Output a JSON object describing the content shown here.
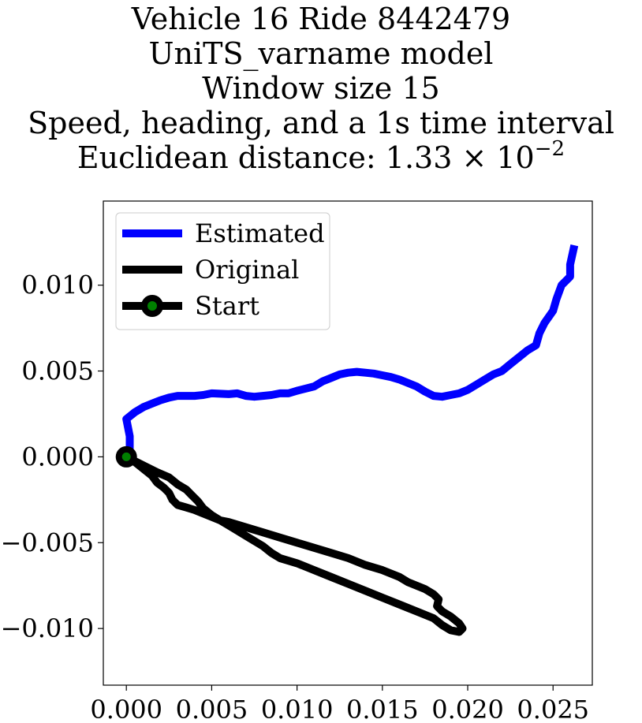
{
  "title": {
    "line1": "Vehicle 16 Ride 8442479",
    "line2": "UniTS_varname model",
    "line3": "Window size 15",
    "line4": "Speed, heading, and a 1s time interval",
    "line5_prefix": "Euclidean distance: 1.33 × 10",
    "line5_exponent": "−2"
  },
  "chart_data": {
    "type": "line",
    "xlim": [
      -0.00135,
      0.0273
    ],
    "ylim": [
      -0.0133,
      0.0149
    ],
    "xticks": [
      0.0,
      0.005,
      0.01,
      0.015,
      0.02,
      0.025
    ],
    "xtick_labels": [
      "0.000",
      "0.005",
      "0.010",
      "0.015",
      "0.020",
      "0.025"
    ],
    "yticks": [
      -0.01,
      -0.005,
      0.0,
      0.005,
      0.01
    ],
    "ytick_labels": [
      "−0.010",
      "−0.005",
      "0.000",
      "0.005",
      "0.010"
    ],
    "grid": false,
    "legend_position": "upper-left",
    "legend": [
      {
        "label": "Estimated",
        "color": "#0000ff",
        "marker": false
      },
      {
        "label": "Original",
        "color": "#000000",
        "marker": false
      },
      {
        "label": "Start",
        "color": "#000000",
        "marker": true,
        "marker_fill": "#008000"
      }
    ],
    "series": [
      {
        "name": "Estimated",
        "color": "#0000ff",
        "points": [
          [
            0.0,
            0.0
          ],
          [
            0.0002,
            0.0005
          ],
          [
            0.0002,
            0.0012
          ],
          [
            0.0,
            0.0022
          ],
          [
            0.0005,
            0.0026
          ],
          [
            0.001,
            0.0029
          ],
          [
            0.0015,
            0.0031
          ],
          [
            0.002,
            0.0033
          ],
          [
            0.0025,
            0.00345
          ],
          [
            0.003,
            0.00355
          ],
          [
            0.0035,
            0.00355
          ],
          [
            0.004,
            0.00355
          ],
          [
            0.0045,
            0.0036
          ],
          [
            0.005,
            0.0037
          ],
          [
            0.006,
            0.00365
          ],
          [
            0.0065,
            0.0037
          ],
          [
            0.007,
            0.00355
          ],
          [
            0.0075,
            0.0035
          ],
          [
            0.008,
            0.00355
          ],
          [
            0.0085,
            0.0036
          ],
          [
            0.009,
            0.0037
          ],
          [
            0.0095,
            0.0037
          ],
          [
            0.01,
            0.00385
          ],
          [
            0.011,
            0.0041
          ],
          [
            0.0115,
            0.0044
          ],
          [
            0.012,
            0.0046
          ],
          [
            0.0125,
            0.0048
          ],
          [
            0.013,
            0.0049
          ],
          [
            0.0135,
            0.00495
          ],
          [
            0.014,
            0.0049
          ],
          [
            0.0145,
            0.00485
          ],
          [
            0.015,
            0.00475
          ],
          [
            0.0155,
            0.00465
          ],
          [
            0.016,
            0.0045
          ],
          [
            0.0165,
            0.0043
          ],
          [
            0.017,
            0.0041
          ],
          [
            0.0175,
            0.0038
          ],
          [
            0.018,
            0.00355
          ],
          [
            0.0185,
            0.0035
          ],
          [
            0.019,
            0.0036
          ],
          [
            0.0195,
            0.0037
          ],
          [
            0.02,
            0.0039
          ],
          [
            0.0205,
            0.0042
          ],
          [
            0.021,
            0.0045
          ],
          [
            0.0215,
            0.0048
          ],
          [
            0.022,
            0.005
          ],
          [
            0.0225,
            0.0054
          ],
          [
            0.023,
            0.0058
          ],
          [
            0.0235,
            0.0062
          ],
          [
            0.024,
            0.0065
          ],
          [
            0.0242,
            0.0072
          ],
          [
            0.0245,
            0.0078
          ],
          [
            0.025,
            0.0085
          ],
          [
            0.0252,
            0.0092
          ],
          [
            0.0255,
            0.01
          ],
          [
            0.026,
            0.0105
          ],
          [
            0.026,
            0.0112
          ],
          [
            0.0262,
            0.0121
          ]
        ]
      },
      {
        "name": "Original",
        "color": "#000000",
        "points": [
          [
            0.0,
            0.0
          ],
          [
            0.0005,
            -0.0003
          ],
          [
            0.001,
            -0.0007
          ],
          [
            0.0015,
            -0.0011
          ],
          [
            0.0018,
            -0.0015
          ],
          [
            0.0022,
            -0.0018
          ],
          [
            0.0025,
            -0.0021
          ],
          [
            0.0027,
            -0.0025
          ],
          [
            0.003,
            -0.0028
          ],
          [
            0.0035,
            -0.00295
          ],
          [
            0.004,
            -0.0031
          ],
          [
            0.0045,
            -0.0033
          ],
          [
            0.005,
            -0.0035
          ],
          [
            0.0055,
            -0.0037
          ],
          [
            0.006,
            -0.0038
          ],
          [
            0.007,
            -0.0041
          ],
          [
            0.008,
            -0.0044
          ],
          [
            0.009,
            -0.0047
          ],
          [
            0.01,
            -0.005
          ],
          [
            0.011,
            -0.0053
          ],
          [
            0.012,
            -0.0056
          ],
          [
            0.013,
            -0.0059
          ],
          [
            0.014,
            -0.0063
          ],
          [
            0.015,
            -0.0066
          ],
          [
            0.016,
            -0.007
          ],
          [
            0.0165,
            -0.0073
          ],
          [
            0.0175,
            -0.0077
          ],
          [
            0.018,
            -0.008
          ],
          [
            0.0183,
            -0.0083
          ],
          [
            0.0182,
            -0.0087
          ],
          [
            0.0185,
            -0.009
          ],
          [
            0.019,
            -0.0093
          ],
          [
            0.0195,
            -0.0097
          ],
          [
            0.0197,
            -0.01
          ],
          [
            0.0195,
            -0.0102
          ],
          [
            0.019,
            -0.0101
          ],
          [
            0.0185,
            -0.0098
          ],
          [
            0.018,
            -0.0094
          ],
          [
            0.017,
            -0.009
          ],
          [
            0.016,
            -0.0086
          ],
          [
            0.015,
            -0.0082
          ],
          [
            0.014,
            -0.0078
          ],
          [
            0.013,
            -0.0074
          ],
          [
            0.012,
            -0.007
          ],
          [
            0.011,
            -0.0066
          ],
          [
            0.01,
            -0.0062
          ],
          [
            0.009,
            -0.0059
          ],
          [
            0.0085,
            -0.0056
          ],
          [
            0.008,
            -0.0052
          ],
          [
            0.0075,
            -0.0049
          ],
          [
            0.007,
            -0.0046
          ],
          [
            0.0065,
            -0.0043
          ],
          [
            0.006,
            -0.004
          ],
          [
            0.0055,
            -0.0037
          ],
          [
            0.005,
            -0.0034
          ],
          [
            0.0045,
            -0.003
          ],
          [
            0.0042,
            -0.0026
          ],
          [
            0.0038,
            -0.0022
          ],
          [
            0.0035,
            -0.0019
          ],
          [
            0.003,
            -0.0016
          ],
          [
            0.0025,
            -0.0012
          ],
          [
            0.0018,
            -0.0009
          ],
          [
            0.001,
            -0.0005
          ],
          [
            0.0,
            0.0
          ]
        ]
      }
    ],
    "start_point": {
      "name": "Start",
      "x": 0.0,
      "y": 0.0,
      "marker_fill": "#008000",
      "marker_edge": "#000000"
    }
  }
}
